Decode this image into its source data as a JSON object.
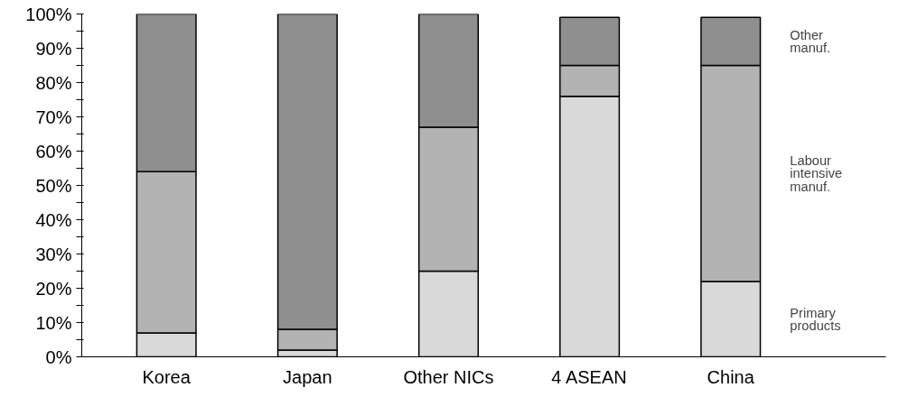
{
  "chart_data": {
    "type": "bar",
    "stacked": true,
    "categories": [
      "Korea",
      "Japan",
      "Other NICs",
      "4 ASEAN",
      "China"
    ],
    "series": [
      {
        "name": "Primary products",
        "color": "#d9d9d9",
        "values": [
          7,
          2,
          25,
          76,
          22
        ]
      },
      {
        "name": "Labour intensive manuf.",
        "color": "#b3b3b3",
        "values": [
          47,
          6,
          42,
          9,
          63
        ]
      },
      {
        "name": "Other manuf.",
        "color": "#8f8f8f",
        "values": [
          46,
          92,
          33,
          14,
          14
        ]
      }
    ],
    "ylim": [
      0,
      100
    ],
    "yticks": [
      {
        "value": 0,
        "label": "0%"
      },
      {
        "value": 5,
        "label": null
      },
      {
        "value": 10,
        "label": "10%"
      },
      {
        "value": 15,
        "label": null
      },
      {
        "value": 20,
        "label": "20%"
      },
      {
        "value": 25,
        "label": null
      },
      {
        "value": 30,
        "label": "30%"
      },
      {
        "value": 35,
        "label": null
      },
      {
        "value": 40,
        "label": "40%"
      },
      {
        "value": 45,
        "label": null
      },
      {
        "value": 50,
        "label": "50%"
      },
      {
        "value": 55,
        "label": null
      },
      {
        "value": 60,
        "label": "60%"
      },
      {
        "value": 65,
        "label": null
      },
      {
        "value": 70,
        "label": "70%"
      },
      {
        "value": 75,
        "label": null
      },
      {
        "value": 80,
        "label": "80%"
      },
      {
        "value": 85,
        "label": null
      },
      {
        "value": 90,
        "label": "90%"
      },
      {
        "value": 95,
        "label": null
      },
      {
        "value": 100,
        "label": "100%"
      }
    ],
    "grid": false,
    "legend": false
  }
}
